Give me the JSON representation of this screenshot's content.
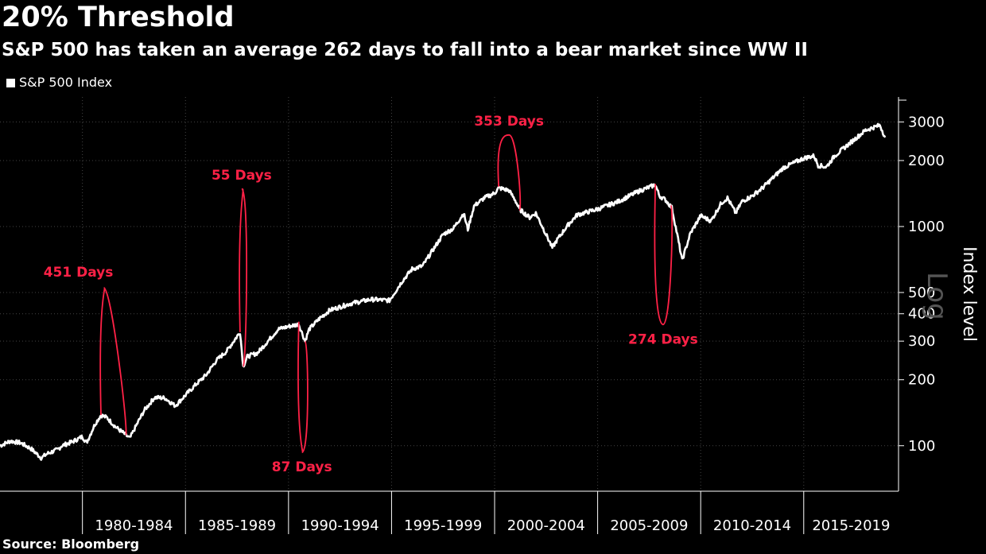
{
  "chart_data": {
    "type": "line",
    "title": "20% Threshold",
    "subtitle": "S&P 500 has taken an average 262 days to fall into a bear market since WW II",
    "legend": [
      "S&P 500 Index"
    ],
    "ylabel": "Index level",
    "scale_watermark": "Log",
    "source": "Source: Bloomberg",
    "yscale": "log",
    "ylim": [
      62,
      3900
    ],
    "xlim": [
      1976.0,
      2019.6
    ],
    "y_ticks": [
      100,
      200,
      300,
      400,
      500,
      1000,
      2000,
      3000
    ],
    "x_period_labels": [
      "1980-1984",
      "1985-1989",
      "1990-1994",
      "1995-1999",
      "2000-2004",
      "2005-2009",
      "2010-2014",
      "2015-2019"
    ],
    "x_period_starts": [
      1980,
      1985,
      1990,
      1995,
      2000,
      2005,
      2010,
      2015
    ],
    "series": [
      {
        "name": "S&P 500 Index",
        "x": [
          1976.0,
          1976.5,
          1977.0,
          1977.5,
          1978.0,
          1978.3,
          1978.8,
          1979.0,
          1979.5,
          1980.0,
          1980.2,
          1980.6,
          1980.9,
          1981.2,
          1981.6,
          1982.0,
          1982.3,
          1982.6,
          1983.0,
          1983.5,
          1984.0,
          1984.5,
          1985.0,
          1985.5,
          1986.0,
          1986.5,
          1987.0,
          1987.65,
          1987.8,
          1988.0,
          1988.5,
          1989.0,
          1989.5,
          1990.0,
          1990.5,
          1990.8,
          1991.0,
          1991.5,
          1992.0,
          1993.0,
          1994.0,
          1994.9,
          1995.5,
          1996.0,
          1996.5,
          1997.0,
          1997.5,
          1998.0,
          1998.5,
          1998.7,
          1999.0,
          1999.5,
          2000.0,
          2000.2,
          2000.7,
          2001.0,
          2001.2,
          2001.7,
          2002.0,
          2002.5,
          2002.8,
          2003.0,
          2003.5,
          2004.0,
          2005.0,
          2006.0,
          2007.0,
          2007.8,
          2008.0,
          2008.3,
          2008.6,
          2008.9,
          2009.1,
          2009.5,
          2010.0,
          2010.5,
          2011.0,
          2011.3,
          2011.7,
          2012.0,
          2012.5,
          2013.0,
          2014.0,
          2015.0,
          2015.5,
          2015.7,
          2016.1,
          2016.5,
          2017.0,
          2018.0,
          2018.7,
          2018.95
        ],
        "values": [
          100,
          105,
          103,
          97,
          88,
          92,
          96,
          100,
          104,
          110,
          103,
          125,
          138,
          134,
          122,
          114,
          108,
          123,
          145,
          166,
          165,
          152,
          170,
          190,
          210,
          245,
          270,
          330,
          230,
          255,
          265,
          300,
          340,
          350,
          358,
          300,
          340,
          380,
          415,
          445,
          465,
          460,
          560,
          640,
          660,
          780,
          920,
          980,
          1150,
          970,
          1240,
          1350,
          1420,
          1500,
          1460,
          1320,
          1200,
          1100,
          1150,
          920,
          800,
          860,
          1000,
          1130,
          1200,
          1300,
          1450,
          1550,
          1380,
          1320,
          1220,
          880,
          700,
          930,
          1120,
          1060,
          1280,
          1350,
          1150,
          1300,
          1380,
          1500,
          1850,
          2050,
          2100,
          1900,
          1870,
          2100,
          2300,
          2750,
          2900,
          2550
        ]
      }
    ],
    "annotations": [
      {
        "label": "451 Days",
        "x_start": 1980.9,
        "x_end": 1982.1,
        "value_start": 138,
        "value_end": 112
      },
      {
        "label": "55 Days",
        "x_start": 1987.65,
        "x_end": 1987.8,
        "value_start": 330,
        "value_end": 230
      },
      {
        "label": "87 Days",
        "x_start": 1990.5,
        "x_end": 1990.8,
        "value_start": 368,
        "value_end": 300
      },
      {
        "label": "353 Days",
        "x_start": 2000.2,
        "x_end": 2001.2,
        "value_start": 1520,
        "value_end": 1190
      },
      {
        "label": "274 Days",
        "x_start": 2007.8,
        "x_end": 2008.55,
        "value_start": 1565,
        "value_end": 1250
      }
    ]
  }
}
